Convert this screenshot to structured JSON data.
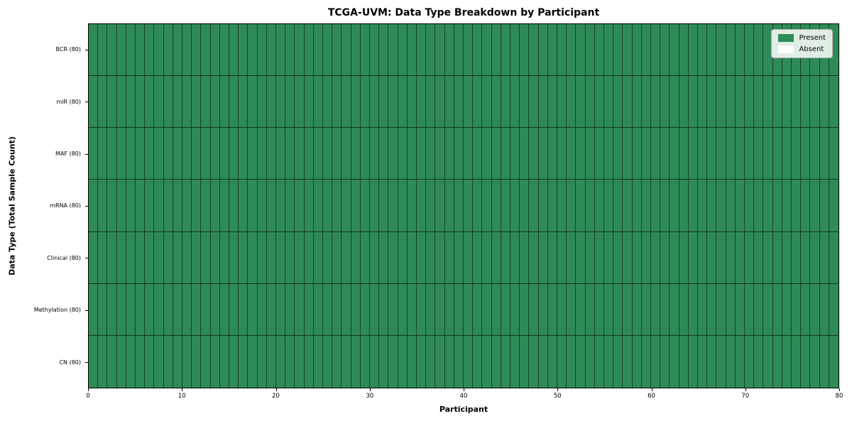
{
  "title": "TCGA-UVM: Data Type Breakdown by Participant",
  "axes": {
    "x_label": "Participant",
    "y_label": "Data Type (Total Sample Count)"
  },
  "legend": {
    "items": [
      {
        "label": "Present",
        "color": "#2e8b57"
      },
      {
        "label": "Absent",
        "color": "#ffffff"
      }
    ]
  },
  "chart_data": {
    "type": "heatmap",
    "title": "TCGA-UVM: Data Type Breakdown by Participant",
    "xlabel": "Participant",
    "ylabel": "Data Type (Total Sample Count)",
    "x_range": [
      0,
      80
    ],
    "x_ticks": [
      0,
      10,
      20,
      30,
      40,
      50,
      60,
      70,
      80
    ],
    "n_participants": 80,
    "row_order_top_to_bottom": [
      "BCR",
      "miR",
      "MAF",
      "mRNA",
      "Clinical",
      "Methylation",
      "CN"
    ],
    "rows": [
      {
        "name": "BCR",
        "tick_label": "BCR (80)",
        "total_samples": 80,
        "present_count": 80,
        "absent_count": 0
      },
      {
        "name": "miR",
        "tick_label": "miR (80)",
        "total_samples": 80,
        "present_count": 80,
        "absent_count": 0
      },
      {
        "name": "MAF",
        "tick_label": "MAF (80)",
        "total_samples": 80,
        "present_count": 80,
        "absent_count": 0
      },
      {
        "name": "mRNA",
        "tick_label": "mRNA (80)",
        "total_samples": 80,
        "present_count": 80,
        "absent_count": 0
      },
      {
        "name": "Clinical",
        "tick_label": "Clinical (80)",
        "total_samples": 80,
        "present_count": 80,
        "absent_count": 0
      },
      {
        "name": "Methylation",
        "tick_label": "Methylation (80)",
        "total_samples": 80,
        "present_count": 80,
        "absent_count": 0
      },
      {
        "name": "CN",
        "tick_label": "CN (80)",
        "total_samples": 80,
        "present_count": 80,
        "absent_count": 0
      }
    ],
    "cell_value_meaning": {
      "1": "Present",
      "0": "Absent"
    },
    "all_cells_value": 1,
    "colors": {
      "present": "#2e8b57",
      "absent": "#ffffff",
      "cell_border": "rgba(0,0,0,0.52)",
      "row_border": "rgba(0,0,0,0.62)",
      "frame": "#000000"
    },
    "legend_position": "upper right",
    "grid": true
  }
}
